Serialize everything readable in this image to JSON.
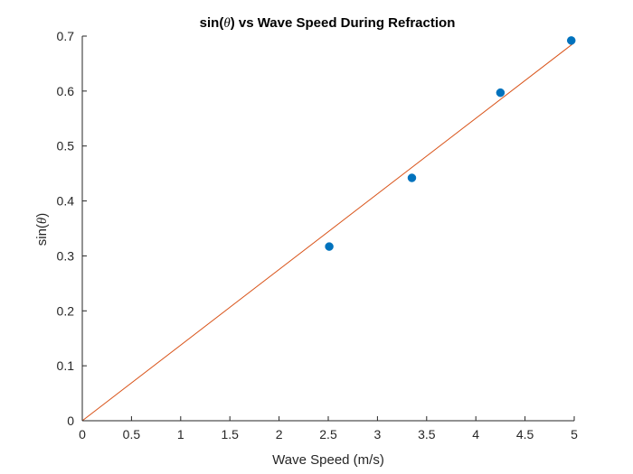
{
  "chart_data": {
    "type": "scatter",
    "title_before": "sin(",
    "title_symbol": "θ",
    "title_after": ") vs Wave Speed During Refraction",
    "xlabel": "Wave Speed (m/s)",
    "ylabel_before": "sin(",
    "ylabel_symbol": "θ",
    "ylabel_after": ")",
    "xlim": [
      0,
      5
    ],
    "ylim": [
      0,
      0.7
    ],
    "x_ticks": [
      "0",
      "0.5",
      "1",
      "1.5",
      "2",
      "2.5",
      "3",
      "3.5",
      "4",
      "4.5",
      "5"
    ],
    "y_ticks": [
      "0",
      "0.1",
      "0.2",
      "0.3",
      "0.4",
      "0.5",
      "0.6",
      "0.7"
    ],
    "grid": false,
    "series": [
      {
        "type": "scatter",
        "color": "#0072bd",
        "x": [
          2.51,
          3.35,
          4.25,
          4.97
        ],
        "y": [
          0.317,
          0.442,
          0.597,
          0.692
        ]
      },
      {
        "type": "line",
        "color": "#d95319",
        "x": [
          0,
          5
        ],
        "y": [
          0,
          0.688
        ]
      }
    ]
  }
}
